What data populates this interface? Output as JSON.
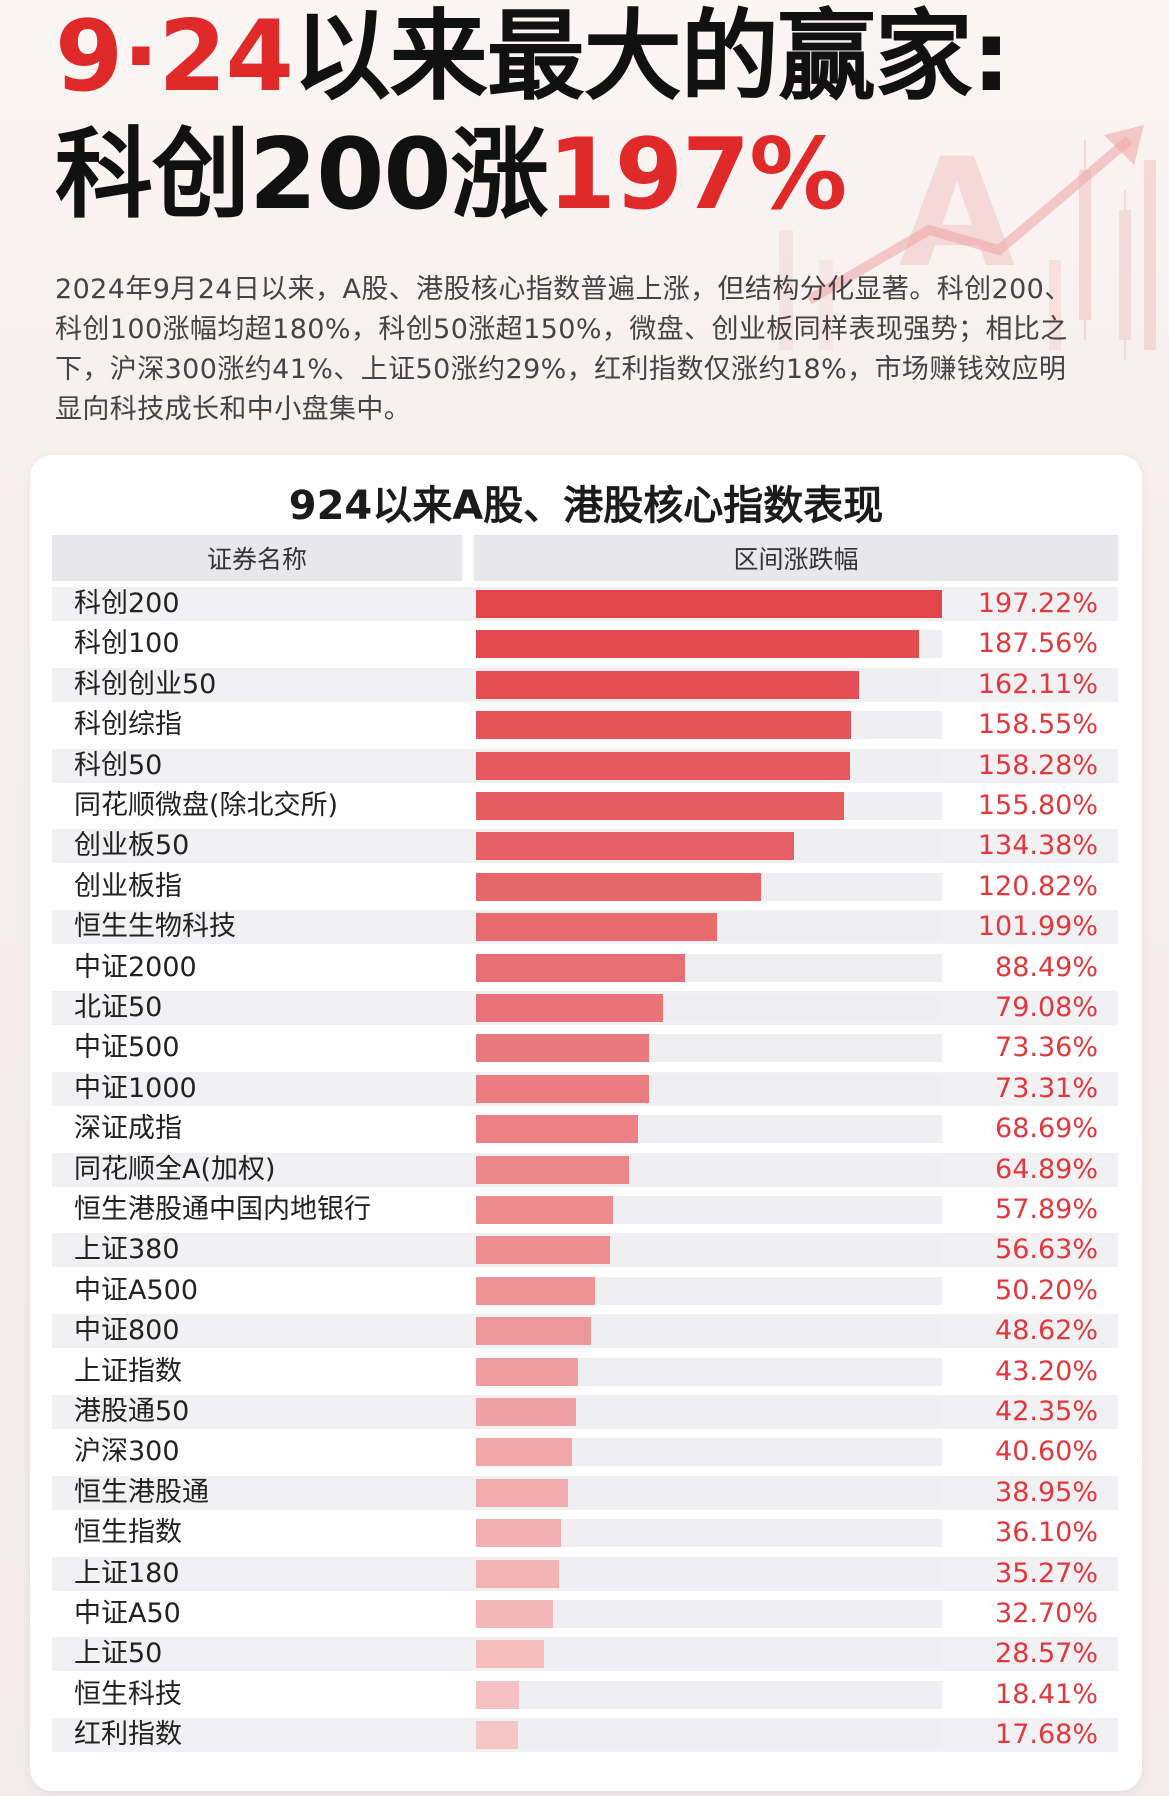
{
  "headline": {
    "line1_red": "9·24",
    "line1_black": "以来最大的赢家:",
    "line2_black": "科创200涨",
    "line2_red": "197%"
  },
  "intro": "2024年9月24日以来，A股、港股核心指数普遍上涨，但结构分化显著。科创200、科创100涨幅均超180%，科创50涨超150%，微盘、创业板同样表现强势；相比之下，沪深300涨约41%、上证50涨约29%，红利指数仅涨约18%，市场赚钱效应明显向科技成长和中小盘集中。",
  "colors": {
    "accent": "#e02a2a",
    "bar_dark": "#e2464b",
    "bar_light": "#f6c6c7",
    "value_text": "#e0383c"
  },
  "chart_data": {
    "type": "bar",
    "orientation": "horizontal",
    "title": "924以来A股、港股核心指数表现",
    "column_headers": [
      "证券名称",
      "区间涨跌幅"
    ],
    "unit": "%",
    "xlim": [
      0,
      197.22
    ],
    "categories": [
      "科创200",
      "科创100",
      "科创创业50",
      "科创综指",
      "科创50",
      "同花顺微盘(除北交所)",
      "创业板50",
      "创业板指",
      "恒生生物科技",
      "中证2000",
      "北证50",
      "中证500",
      "中证1000",
      "深证成指",
      "同花顺全A(加权)",
      "恒生港股通中国内地银行",
      "上证380",
      "中证A500",
      "中证800",
      "上证指数",
      "港股通50",
      "沪深300",
      "恒生港股通",
      "恒生指数",
      "上证180",
      "中证A50",
      "上证50",
      "恒生科技",
      "红利指数"
    ],
    "values": [
      197.22,
      187.56,
      162.11,
      158.55,
      158.28,
      155.8,
      134.38,
      120.82,
      101.99,
      88.49,
      79.08,
      73.36,
      73.31,
      68.69,
      64.89,
      57.89,
      56.63,
      50.2,
      48.62,
      43.2,
      42.35,
      40.6,
      38.95,
      36.1,
      35.27,
      32.7,
      28.57,
      18.41,
      17.68
    ],
    "labels": [
      "197.22%",
      "187.56%",
      "162.11%",
      "158.55%",
      "158.28%",
      "155.80%",
      "134.38%",
      "120.82%",
      "101.99%",
      "88.49%",
      "79.08%",
      "73.36%",
      "73.31%",
      "68.69%",
      "64.89%",
      "57.89%",
      "56.63%",
      "50.20%",
      "48.62%",
      "43.20%",
      "42.35%",
      "40.60%",
      "38.95%",
      "36.10%",
      "35.27%",
      "32.70%",
      "28.57%",
      "18.41%",
      "17.68%"
    ]
  }
}
